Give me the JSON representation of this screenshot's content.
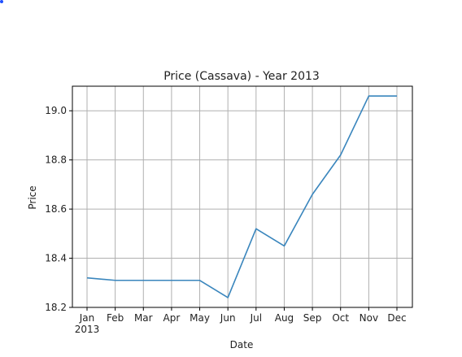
{
  "chart_data": {
    "type": "line",
    "title": "Price (Cassava) - Year 2013",
    "xlabel": "Date",
    "ylabel": "Price",
    "categories": [
      "Jan",
      "Feb",
      "Mar",
      "Apr",
      "May",
      "Jun",
      "Jul",
      "Aug",
      "Sep",
      "Oct",
      "Nov",
      "Dec"
    ],
    "year_label": "2013",
    "values": [
      18.32,
      18.31,
      18.31,
      18.31,
      18.31,
      18.24,
      18.52,
      18.45,
      18.66,
      18.82,
      19.06,
      19.06
    ],
    "ylim": [
      18.2,
      19.1
    ],
    "yticks": [
      "18.2",
      "18.4",
      "18.6",
      "18.8",
      "19.0"
    ],
    "grid": true,
    "line_color": "#3a86bd"
  }
}
